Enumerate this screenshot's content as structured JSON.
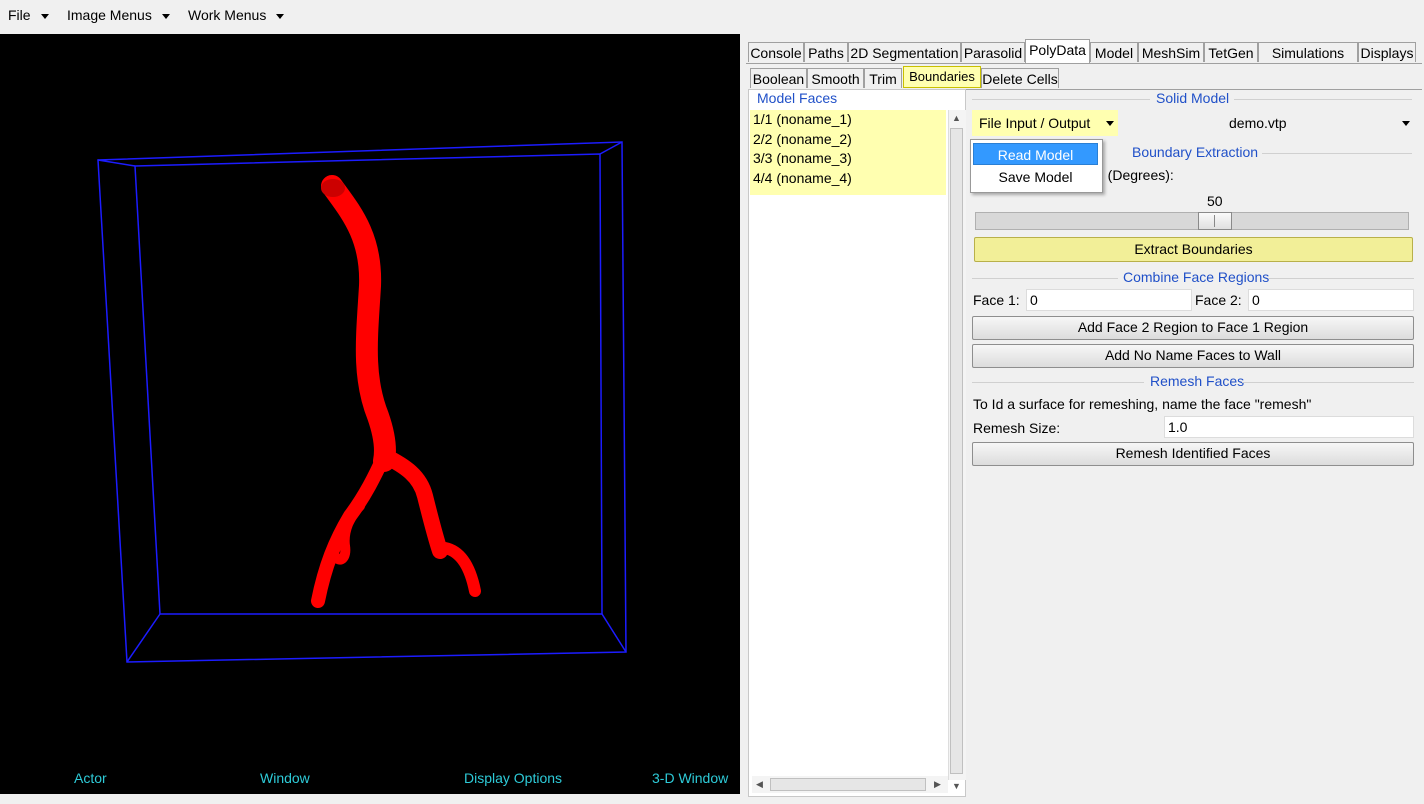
{
  "menubar": {
    "items": [
      "File",
      "Image Menus",
      "Work Menus"
    ]
  },
  "viewer": {
    "bottom_labels": [
      "Actor",
      "Window",
      "Display Options",
      "3-D Window"
    ],
    "colors": {
      "background": "#000000",
      "bounding_box": "#1c1cff",
      "vessel": "#ff0000",
      "label_text": "#2ecbd8"
    }
  },
  "tabs": {
    "main": [
      "Console",
      "Paths",
      "2D Segmentation",
      "Parasolid",
      "PolyData",
      "Model",
      "MeshSim",
      "TetGen",
      "Simulations",
      "Displays"
    ],
    "main_active": "PolyData",
    "sub": [
      "Boolean",
      "Smooth",
      "Trim",
      "Boundaries",
      "Delete Cells"
    ],
    "sub_active": "Boundaries"
  },
  "model_faces": {
    "title": "Model Faces",
    "items": [
      "1/1 (noname_1)",
      "2/2 (noname_2)",
      "3/3 (noname_3)",
      "4/4 (noname_4)"
    ]
  },
  "solid_model": {
    "title": "Solid Model",
    "file_io_label": "File Input / Output",
    "file_name": "demo.vtp",
    "menu_items": [
      "Read Model",
      "Save Model"
    ],
    "menu_selected": "Read Model"
  },
  "boundary_extraction": {
    "title": "Boundary Extraction",
    "angle_label_partial": "n (Degrees):",
    "angle_value": "50",
    "slider_fraction": 0.56,
    "extract_button": "Extract Boundaries"
  },
  "combine_face_regions": {
    "title": "Combine Face Regions",
    "face1_label": "Face 1:",
    "face1_value": "0",
    "face2_label": "Face 2:",
    "face2_value": "0",
    "add_region_button": "Add Face 2 Region to Face 1 Region",
    "add_noname_button": "Add No Name Faces to Wall"
  },
  "remesh_faces": {
    "title": "Remesh Faces",
    "instruction": "To Id a surface for remeshing, name the face \"remesh\"",
    "size_label": "Remesh Size:",
    "size_value": "1.0",
    "remesh_button": "Remesh Identified Faces"
  }
}
